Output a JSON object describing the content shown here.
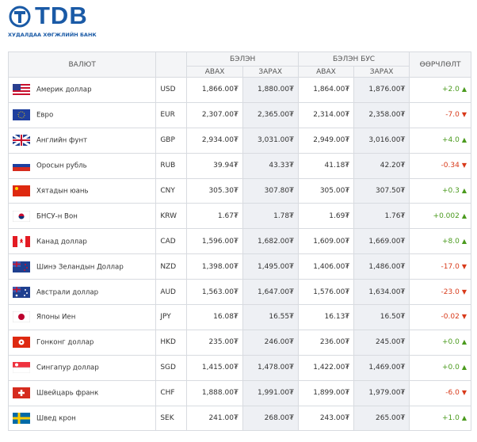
{
  "header": {
    "logo": "TDB",
    "subtitle": "ХУДАЛДАА ХӨГЖЛИЙН БАНК"
  },
  "table": {
    "headers": {
      "currency": "ВАЛЮТ",
      "cash": "БЭЛЭН",
      "noncash": "БЭЛЭН БУС",
      "change": "ӨӨРЧЛӨЛТ",
      "cash_buy": "АВАХ",
      "cash_sell": "ЗАРАХ",
      "noncash_buy": "АВАХ",
      "noncash_sell": "ЗАРАХ"
    },
    "rows": [
      [
        "Америк доллар",
        "USD",
        "1,866.00₮",
        "1,880.00₮",
        "1,864.00₮",
        "1,876.00₮",
        "+2.0"
      ],
      [
        "Евро",
        "EUR",
        "2,307.00₮",
        "2,365.00₮",
        "2,314.00₮",
        "2,358.00₮",
        "-7.0"
      ],
      [
        "Английн фунт",
        "GBP",
        "2,934.00₮",
        "3,031.00₮",
        "2,949.00₮",
        "3,016.00₮",
        "+4.0"
      ],
      [
        "Оросын рубль",
        "RUB",
        "39.94₮",
        "43.33₮",
        "41.18₮",
        "42.20₮",
        "-0.34"
      ],
      [
        "Хятадын юань",
        "CNY",
        "305.30₮",
        "307.80₮",
        "305.00₮",
        "307.50₮",
        "+0.3"
      ],
      [
        "БНСУ-н Вон",
        "KRW",
        "1.67₮",
        "1.78₮",
        "1.69₮",
        "1.76₮",
        "+0.002"
      ],
      [
        "Канад доллар",
        "CAD",
        "1,596.00₮",
        "1,682.00₮",
        "1,609.00₮",
        "1,669.00₮",
        "+8.0"
      ],
      [
        "Шинэ Зеландын Доллар",
        "NZD",
        "1,398.00₮",
        "1,495.00₮",
        "1,406.00₮",
        "1,486.00₮",
        "-17.0"
      ],
      [
        "Австрали доллар",
        "AUD",
        "1,563.00₮",
        "1,647.00₮",
        "1,576.00₮",
        "1,634.00₮",
        "-23.0"
      ],
      [
        "Японы Иен",
        "JPY",
        "16.08₮",
        "16.55₮",
        "16.13₮",
        "16.50₮",
        "-0.02"
      ],
      [
        "Гонконг доллар",
        "HKD",
        "235.00₮",
        "246.00₮",
        "236.00₮",
        "245.00₮",
        "+0.0"
      ],
      [
        "Сингапур доллар",
        "SGD",
        "1,415.00₮",
        "1,478.00₮",
        "1,422.00₮",
        "1,469.00₮",
        "+0.0"
      ],
      [
        "Швейцарь франк",
        "CHF",
        "1,888.00₮",
        "1,991.00₮",
        "1,899.00₮",
        "1,979.00₮",
        "-6.0"
      ],
      [
        "Швед крон",
        "SEK",
        "241.00₮",
        "268.00₮",
        "243.00₮",
        "265.00₮",
        "+1.0"
      ]
    ]
  }
}
